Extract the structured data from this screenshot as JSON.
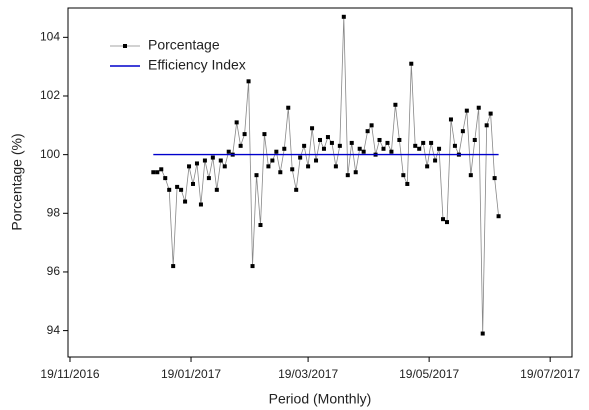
{
  "chart_data": {
    "type": "line",
    "x_label": "Period (Monthly)",
    "y_label": "Porcentage (%)",
    "xlim": [
      "18/11/2016",
      "30/07/2017"
    ],
    "xticks": [
      "19/11/2016",
      "19/01/2017",
      "19/03/2017",
      "19/05/2017",
      "19/07/2017"
    ],
    "ylim": [
      93.1,
      105
    ],
    "yticks": [
      94,
      96,
      98,
      100,
      102,
      104
    ],
    "legend": "top-left",
    "x": [
      "31/12/2016",
      "02/01/2017",
      "04/01/2017",
      "06/01/2017",
      "08/01/2017",
      "10/01/2017",
      "12/01/2017",
      "14/01/2017",
      "16/01/2017",
      "18/01/2017",
      "20/01/2017",
      "22/01/2017",
      "24/01/2017",
      "26/01/2017",
      "28/01/2017",
      "30/01/2017",
      "01/02/2017",
      "03/02/2017",
      "05/02/2017",
      "07/02/2017",
      "09/02/2017",
      "11/02/2017",
      "13/02/2017",
      "15/02/2017",
      "17/02/2017",
      "19/02/2017",
      "21/02/2017",
      "23/02/2017",
      "25/02/2017",
      "27/02/2017",
      "01/03/2017",
      "03/03/2017",
      "05/03/2017",
      "07/03/2017",
      "09/03/2017",
      "11/03/2017",
      "13/03/2017",
      "15/03/2017",
      "17/03/2017",
      "19/03/2017",
      "21/03/2017",
      "23/03/2017",
      "25/03/2017",
      "27/03/2017",
      "29/03/2017",
      "31/03/2017",
      "02/04/2017",
      "04/04/2017",
      "06/04/2017",
      "08/04/2017",
      "10/04/2017",
      "12/04/2017",
      "14/04/2017",
      "16/04/2017",
      "18/04/2017",
      "20/04/2017",
      "22/04/2017",
      "24/04/2017",
      "26/04/2017",
      "28/04/2017",
      "30/04/2017",
      "02/05/2017",
      "04/05/2017",
      "06/05/2017",
      "08/05/2017",
      "10/05/2017",
      "12/05/2017",
      "14/05/2017",
      "16/05/2017",
      "18/05/2017",
      "20/05/2017",
      "22/05/2017",
      "24/05/2017",
      "26/05/2017",
      "28/05/2017",
      "30/05/2017",
      "01/06/2017",
      "03/06/2017",
      "05/06/2017",
      "07/06/2017",
      "09/06/2017",
      "11/06/2017",
      "13/06/2017",
      "15/06/2017",
      "17/06/2017",
      "19/06/2017",
      "21/06/2017",
      "23/06/2017"
    ],
    "series": [
      {
        "name": "Porcentage",
        "color": "#000000",
        "line_color": "#888888",
        "marker": "square",
        "values": [
          99.4,
          99.4,
          99.5,
          99.2,
          98.8,
          96.2,
          98.9,
          98.8,
          98.4,
          99.6,
          99.0,
          99.7,
          98.3,
          99.8,
          99.2,
          99.9,
          98.8,
          99.8,
          99.6,
          100.1,
          100.0,
          101.1,
          100.3,
          100.7,
          102.5,
          96.2,
          99.3,
          97.6,
          100.7,
          99.6,
          99.8,
          100.1,
          99.4,
          100.2,
          101.6,
          99.5,
          98.8,
          99.9,
          100.3,
          99.6,
          100.9,
          99.8,
          100.5,
          100.2,
          100.6,
          100.4,
          99.6,
          100.3,
          104.7,
          99.3,
          100.4,
          99.4,
          100.2,
          100.1,
          100.8,
          101.0,
          100.0,
          100.5,
          100.2,
          100.4,
          100.1,
          101.7,
          100.5,
          99.3,
          99.0,
          103.1,
          100.3,
          100.2,
          100.4,
          99.6,
          100.4,
          99.8,
          100.2,
          97.8,
          97.7,
          101.2,
          100.3,
          100.0,
          100.8,
          101.5,
          99.3,
          100.5,
          101.6,
          93.9,
          101.0,
          101.4,
          99.2,
          97.9
        ]
      },
      {
        "name": "Efficiency Index",
        "color": "#0000cc",
        "marker": "none",
        "x": [
          "31/12/2016",
          "23/06/2017"
        ],
        "values": [
          100,
          100
        ]
      }
    ]
  }
}
